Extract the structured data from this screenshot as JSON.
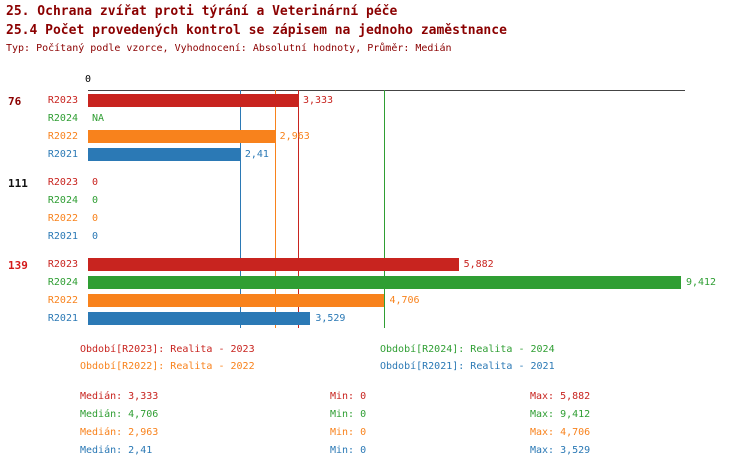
{
  "title": "25. Ochrana zvířat proti týrání a Veterinární péče",
  "subtitle": "25.4 Počet provedených kontrol se zápisem na jednoho zaměstnance",
  "meta": "Typ: Počítaný podle vzorce, Vyhodnocení: Absolutní hodnoty, Průměr: Medián",
  "axis": {
    "zero_label": "0"
  },
  "colors": {
    "title": "#8b0000",
    "axis": "#444444",
    "R2023": "#c8241f",
    "R2024": "#2f9e33",
    "R2022": "#f8821c",
    "R2021": "#2b79b5"
  },
  "chart_data": {
    "type": "bar",
    "orientation": "horizontal",
    "value_axis": {
      "min": 0,
      "max_rendered": 9.412,
      "grid": false
    },
    "series_colors": {
      "R2023": "#c8241f",
      "R2024": "#2f9e33",
      "R2022": "#f8821c",
      "R2021": "#2b79b5"
    },
    "median_lines": [
      {
        "series": "R2023",
        "value": 3.333
      },
      {
        "series": "R2024",
        "value": 4.706
      },
      {
        "series": "R2022",
        "value": 2.963
      },
      {
        "series": "R2021",
        "value": 2.41
      }
    ],
    "groups": [
      {
        "group_label": "76",
        "group_label_color": "#8b0000",
        "rows": [
          {
            "series": "R2023",
            "value": 3.333,
            "label": "3,333"
          },
          {
            "series": "R2024",
            "value": null,
            "label": "NA"
          },
          {
            "series": "R2022",
            "value": 2.963,
            "label": "2,963"
          },
          {
            "series": "R2021",
            "value": 2.41,
            "label": "2,41"
          }
        ]
      },
      {
        "group_label": "111",
        "group_label_color": "#111111",
        "rows": [
          {
            "series": "R2023",
            "value": 0,
            "label": "0"
          },
          {
            "series": "R2024",
            "value": 0,
            "label": "0"
          },
          {
            "series": "R2022",
            "value": 0,
            "label": "0"
          },
          {
            "series": "R2021",
            "value": 0,
            "label": "0"
          }
        ]
      },
      {
        "group_label": "139",
        "group_label_color": "#d41a1a",
        "rows": [
          {
            "series": "R2023",
            "value": 5.882,
            "label": "5,882"
          },
          {
            "series": "R2024",
            "value": 9.412,
            "label": "9,412"
          },
          {
            "series": "R2022",
            "value": 4.706,
            "label": "4,706"
          },
          {
            "series": "R2021",
            "value": 3.529,
            "label": "3,529"
          }
        ]
      }
    ]
  },
  "legend": {
    "columns": [
      [
        {
          "series": "R2023",
          "text": "Období[R2023]: Realita - 2023"
        },
        {
          "series": "R2022",
          "text": "Období[R2022]: Realita - 2022"
        }
      ],
      [
        {
          "series": "R2024",
          "text": "Období[R2024]: Realita - 2024"
        },
        {
          "series": "R2021",
          "text": "Období[R2021]: Realita - 2021"
        }
      ]
    ]
  },
  "stats": {
    "rows": [
      {
        "series": "R2023",
        "median": "Medián: 3,333",
        "min": "Min: 0",
        "max": "Max: 5,882"
      },
      {
        "series": "R2024",
        "median": "Medián: 4,706",
        "min": "Min: 0",
        "max": "Max: 9,412"
      },
      {
        "series": "R2022",
        "median": "Medián: 2,963",
        "min": "Min: 0",
        "max": "Max: 4,706"
      },
      {
        "series": "R2021",
        "median": "Medián: 2,41",
        "min": "Min: 0",
        "max": "Max: 3,529"
      }
    ]
  }
}
